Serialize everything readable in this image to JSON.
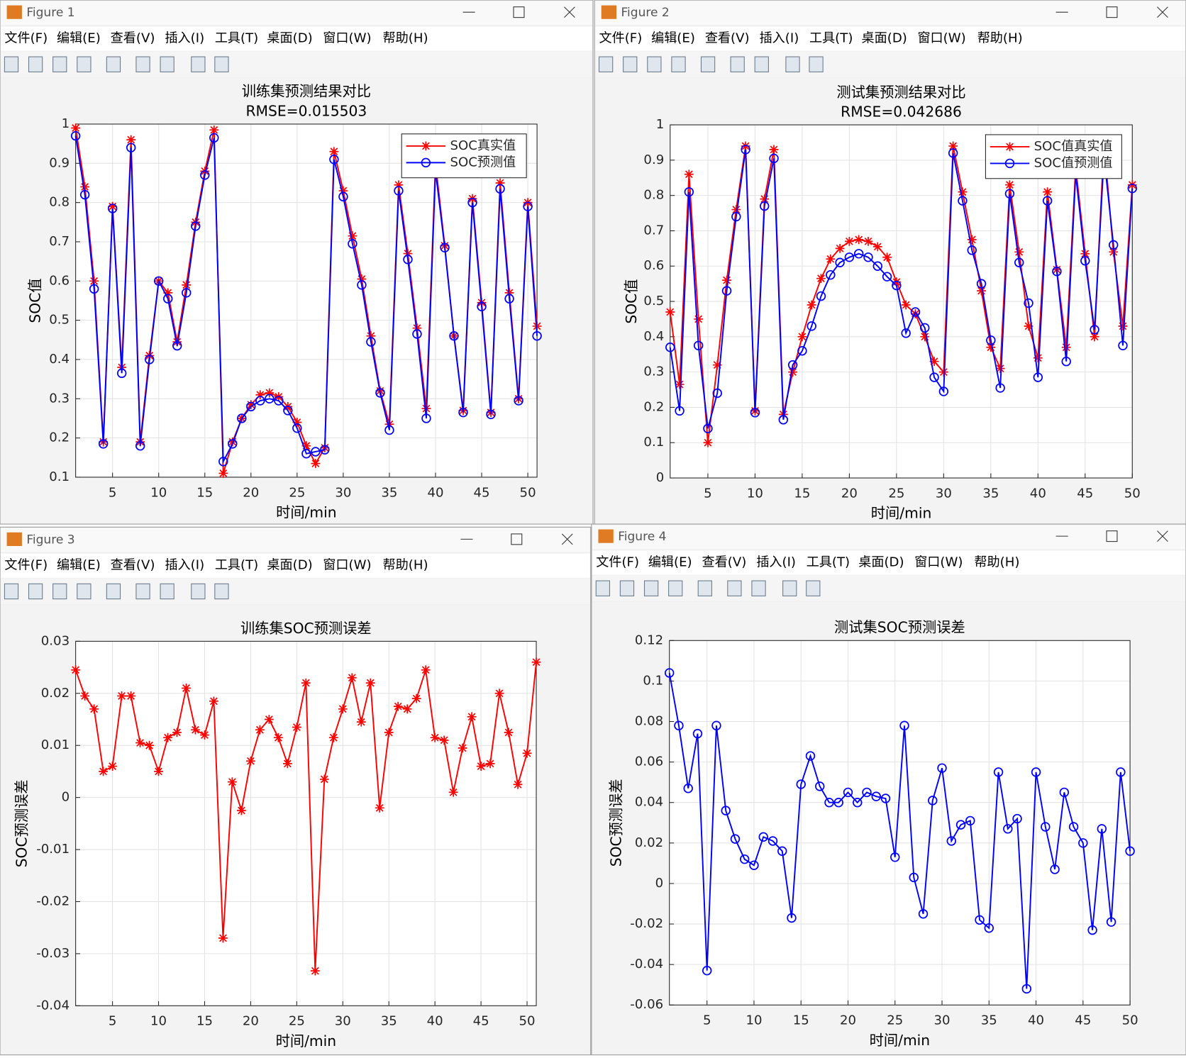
{
  "windows": [
    {
      "title": "Figure 1"
    },
    {
      "title": "Figure 2"
    },
    {
      "title": "Figure 3"
    },
    {
      "title": "Figure 4"
    }
  ],
  "menu": [
    "文件(F)",
    "编辑(E)",
    "查看(V)",
    "插入(I)",
    "工具(T)",
    "桌面(D)",
    "窗口(W)",
    "帮助(H)"
  ],
  "chart_data": [
    {
      "type": "line",
      "title": "训练集预测结果对比",
      "subtitle": "RMSE=0.015503",
      "xlabel": "时间/min",
      "ylabel": "SOC值",
      "x": [
        1,
        2,
        3,
        4,
        5,
        6,
        7,
        8,
        9,
        10,
        11,
        12,
        13,
        14,
        15,
        16,
        17,
        18,
        19,
        20,
        21,
        22,
        23,
        24,
        25,
        26,
        27,
        28,
        29,
        30,
        31,
        32,
        33,
        34,
        35,
        36,
        37,
        38,
        39,
        40,
        41,
        42,
        43,
        44,
        45,
        46,
        47,
        48,
        49,
        50,
        51
      ],
      "xlim": [
        1,
        51
      ],
      "xticks": [
        5,
        10,
        15,
        20,
        25,
        30,
        35,
        40,
        45,
        50
      ],
      "ylim": [
        0.1,
        1
      ],
      "yticks": [
        0.1,
        0.2,
        0.3,
        0.4,
        0.5,
        0.6,
        0.7,
        0.8,
        0.9,
        1
      ],
      "grid": true,
      "legend": "upper right",
      "series": [
        {
          "name": "SOC真实值",
          "color": "#ff0000",
          "marker": "*",
          "values": [
            0.99,
            0.84,
            0.6,
            0.19,
            0.79,
            0.38,
            0.96,
            0.19,
            0.41,
            0.6,
            0.57,
            0.445,
            0.59,
            0.75,
            0.88,
            0.985,
            0.11,
            0.19,
            0.25,
            0.285,
            0.31,
            0.315,
            0.305,
            0.28,
            0.24,
            0.18,
            0.135,
            0.175,
            0.93,
            0.83,
            0.715,
            0.605,
            0.46,
            0.32,
            0.235,
            0.845,
            0.67,
            0.48,
            0.275,
            0.9,
            0.69,
            0.46,
            0.27,
            0.81,
            0.545,
            0.265,
            0.85,
            0.57,
            0.3,
            0.8,
            0.485
          ]
        },
        {
          "name": "SOC预测值",
          "color": "#0000ff",
          "marker": "o",
          "values": [
            0.97,
            0.82,
            0.58,
            0.185,
            0.785,
            0.365,
            0.94,
            0.18,
            0.4,
            0.6,
            0.555,
            0.435,
            0.57,
            0.74,
            0.87,
            0.965,
            0.14,
            0.185,
            0.25,
            0.28,
            0.295,
            0.3,
            0.295,
            0.27,
            0.225,
            0.16,
            0.165,
            0.17,
            0.91,
            0.815,
            0.695,
            0.59,
            0.445,
            0.315,
            0.22,
            0.83,
            0.655,
            0.465,
            0.25,
            0.88,
            0.685,
            0.46,
            0.265,
            0.8,
            0.535,
            0.26,
            0.835,
            0.555,
            0.295,
            0.79,
            0.46
          ]
        }
      ]
    },
    {
      "type": "line",
      "title": "测试集预测结果对比",
      "subtitle": "RMSE=0.042686",
      "xlabel": "时间/min",
      "ylabel": "SOC值",
      "x": [
        1,
        2,
        3,
        4,
        5,
        6,
        7,
        8,
        9,
        10,
        11,
        12,
        13,
        14,
        15,
        16,
        17,
        18,
        19,
        20,
        21,
        22,
        23,
        24,
        25,
        26,
        27,
        28,
        29,
        30,
        31,
        32,
        33,
        34,
        35,
        36,
        37,
        38,
        39,
        40,
        41,
        42,
        43,
        44,
        45,
        46,
        47,
        48,
        49,
        50
      ],
      "xlim": [
        1,
        50
      ],
      "xticks": [
        5,
        10,
        15,
        20,
        25,
        30,
        35,
        40,
        45,
        50
      ],
      "ylim": [
        0,
        1
      ],
      "yticks": [
        0,
        0.1,
        0.2,
        0.3,
        0.4,
        0.5,
        0.6,
        0.7,
        0.8,
        0.9,
        1
      ],
      "grid": true,
      "legend": "upper right",
      "series": [
        {
          "name": "SOC值真实值",
          "color": "#ff0000",
          "marker": "*",
          "values": [
            0.47,
            0.265,
            0.86,
            0.45,
            0.1,
            0.32,
            0.56,
            0.76,
            0.94,
            0.19,
            0.79,
            0.93,
            0.18,
            0.3,
            0.4,
            0.49,
            0.565,
            0.62,
            0.65,
            0.67,
            0.675,
            0.67,
            0.655,
            0.625,
            0.555,
            0.49,
            0.465,
            0.4,
            0.33,
            0.3,
            0.94,
            0.81,
            0.675,
            0.53,
            0.37,
            0.31,
            0.83,
            0.64,
            0.43,
            0.34,
            0.81,
            0.59,
            0.37,
            0.88,
            0.635,
            0.4,
            0.95,
            0.64,
            0.43,
            0.83
          ]
        },
        {
          "name": "SOC值预测值",
          "color": "#0000ff",
          "marker": "o",
          "values": [
            0.37,
            0.19,
            0.81,
            0.375,
            0.14,
            0.24,
            0.53,
            0.74,
            0.93,
            0.185,
            0.77,
            0.905,
            0.165,
            0.32,
            0.36,
            0.43,
            0.515,
            0.575,
            0.61,
            0.625,
            0.635,
            0.625,
            0.6,
            0.57,
            0.545,
            0.41,
            0.47,
            0.425,
            0.285,
            0.245,
            0.92,
            0.785,
            0.645,
            0.55,
            0.39,
            0.255,
            0.805,
            0.61,
            0.495,
            0.285,
            0.785,
            0.585,
            0.33,
            0.86,
            0.615,
            0.42,
            0.91,
            0.66,
            0.375,
            0.82
          ]
        }
      ]
    },
    {
      "type": "line",
      "title": "训练集SOC预测误差",
      "xlabel": "时间/min",
      "ylabel": "SOC预测误差",
      "x": [
        1,
        2,
        3,
        4,
        5,
        6,
        7,
        8,
        9,
        10,
        11,
        12,
        13,
        14,
        15,
        16,
        17,
        18,
        19,
        20,
        21,
        22,
        23,
        24,
        25,
        26,
        27,
        28,
        29,
        30,
        31,
        32,
        33,
        34,
        35,
        36,
        37,
        38,
        39,
        40,
        41,
        42,
        43,
        44,
        45,
        46,
        47,
        48,
        49,
        50,
        51
      ],
      "xlim": [
        1,
        51
      ],
      "xticks": [
        5,
        10,
        15,
        20,
        25,
        30,
        35,
        40,
        45,
        50
      ],
      "ylim": [
        -0.04,
        0.03
      ],
      "yticks": [
        -0.04,
        -0.03,
        -0.02,
        -0.01,
        0,
        0.01,
        0.02,
        0.03
      ],
      "grid": true,
      "series": [
        {
          "color": "#ff0000",
          "marker": "*",
          "values": [
            0.0245,
            0.0195,
            0.017,
            0.005,
            0.006,
            0.0195,
            0.0195,
            0.0105,
            0.01,
            0.005,
            0.0115,
            0.0125,
            0.021,
            0.013,
            0.012,
            0.0185,
            -0.027,
            0.003,
            -0.0025,
            0.007,
            0.013,
            0.015,
            0.0115,
            0.0065,
            0.0135,
            0.022,
            -0.0333,
            0.0035,
            0.0115,
            0.017,
            0.023,
            0.0145,
            0.022,
            -0.002,
            0.0125,
            0.0175,
            0.017,
            0.019,
            0.0245,
            0.0115,
            0.011,
            0.001,
            0.0095,
            0.0155,
            0.006,
            0.0065,
            0.02,
            0.0125,
            0.0025,
            0.0085,
            0.026
          ]
        }
      ]
    },
    {
      "type": "line",
      "title": "测试集SOC预测误差",
      "xlabel": "时间/min",
      "ylabel": "SOC预测误差",
      "x": [
        1,
        2,
        3,
        4,
        5,
        6,
        7,
        8,
        9,
        10,
        11,
        12,
        13,
        14,
        15,
        16,
        17,
        18,
        19,
        20,
        21,
        22,
        23,
        24,
        25,
        26,
        27,
        28,
        29,
        30,
        31,
        32,
        33,
        34,
        35,
        36,
        37,
        38,
        39,
        40,
        41,
        42,
        43,
        44,
        45,
        46,
        47,
        48,
        49,
        50
      ],
      "xlim": [
        1,
        50
      ],
      "xticks": [
        5,
        10,
        15,
        20,
        25,
        30,
        35,
        40,
        45,
        50
      ],
      "ylim": [
        -0.06,
        0.12
      ],
      "yticks": [
        -0.06,
        -0.04,
        -0.02,
        0,
        0.02,
        0.04,
        0.06,
        0.08,
        0.1,
        0.12
      ],
      "grid": true,
      "series": [
        {
          "color": "#0000ff",
          "marker": "o",
          "values": [
            0.104,
            0.078,
            0.047,
            0.074,
            -0.043,
            0.078,
            0.036,
            0.022,
            0.012,
            0.009,
            0.023,
            0.021,
            0.016,
            -0.017,
            0.049,
            0.063,
            0.048,
            0.04,
            0.04,
            0.045,
            0.04,
            0.045,
            0.043,
            0.042,
            0.013,
            0.078,
            0.003,
            -0.015,
            0.041,
            0.057,
            0.021,
            0.029,
            0.031,
            -0.018,
            -0.022,
            0.055,
            0.027,
            0.032,
            -0.052,
            0.055,
            0.028,
            0.007,
            0.045,
            0.028,
            0.02,
            -0.023,
            0.027,
            -0.019,
            0.055,
            0.016
          ]
        }
      ]
    }
  ]
}
